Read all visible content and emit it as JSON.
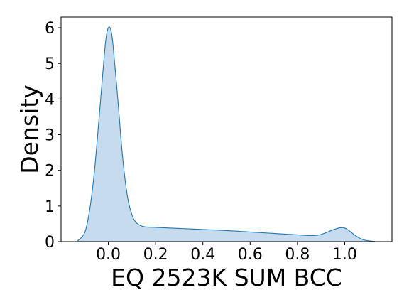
{
  "chart_data": {
    "type": "area",
    "title": "",
    "xlabel": "EQ 2523K SUM BCC",
    "ylabel": "Density",
    "xlim": [
      -0.2,
      1.2
    ],
    "ylim": [
      0,
      6.3
    ],
    "x_ticks": [
      0.0,
      0.2,
      0.4,
      0.6,
      0.8,
      1.0
    ],
    "x_tick_labels": [
      "0.0",
      "0.2",
      "0.4",
      "0.6",
      "0.8",
      "1.0"
    ],
    "y_ticks": [
      0,
      1,
      2,
      3,
      4,
      5,
      6
    ],
    "y_tick_labels": [
      "0",
      "1",
      "2",
      "3",
      "4",
      "5",
      "6"
    ],
    "grid": false,
    "legend": "none",
    "series": [
      {
        "x": [
          -0.13,
          -0.1,
          -0.08,
          -0.06,
          -0.04,
          -0.02,
          -0.01,
          0.0,
          0.01,
          0.02,
          0.04,
          0.06,
          0.08,
          0.1,
          0.12,
          0.15,
          0.2,
          0.3,
          0.4,
          0.5,
          0.6,
          0.7,
          0.8,
          0.86,
          0.9,
          0.95,
          0.98,
          1.0,
          1.02,
          1.05,
          1.08,
          1.13
        ],
        "y": [
          0.02,
          0.25,
          0.85,
          1.9,
          3.4,
          5.0,
          5.7,
          6.0,
          5.95,
          5.5,
          4.0,
          2.4,
          1.3,
          0.75,
          0.52,
          0.42,
          0.4,
          0.37,
          0.34,
          0.31,
          0.27,
          0.23,
          0.19,
          0.17,
          0.2,
          0.33,
          0.39,
          0.38,
          0.3,
          0.15,
          0.05,
          0.0
        ]
      }
    ],
    "colors": {
      "line": "#1f77b4",
      "fill": "#c6dbee"
    }
  }
}
